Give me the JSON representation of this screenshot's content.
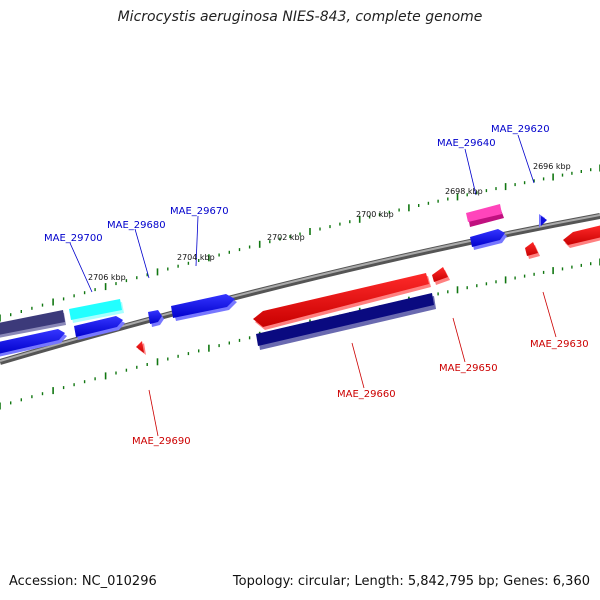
{
  "title": "Microcystis aeruginosa NIES-843, complete genome",
  "footer": {
    "accession": "Accession: NC_010296",
    "topology": "Topology: circular; Length: 5,842,795 bp; Genes: 6,360"
  },
  "scale_labels": [
    "2696 kbp",
    "2698 kbp",
    "2700 kbp",
    "2702 kbp",
    "2704 kbp",
    "2706 kbp"
  ],
  "gene_labels_top": [
    "MAE_29620",
    "MAE_29640",
    "MAE_29670",
    "MAE_29680",
    "MAE_29700"
  ],
  "gene_labels_bottom": [
    "MAE_29630",
    "MAE_29650",
    "MAE_29660",
    "MAE_29690"
  ],
  "colors": {
    "forward_strand": "#1a1aee",
    "reverse_strand": "#ee1111",
    "navy": "#0a0a80",
    "slate": "#3c3a7a",
    "cyan": "#22ffff",
    "magenta": "#ee1199",
    "backbone": "#888888",
    "ticks": "#117711"
  }
}
